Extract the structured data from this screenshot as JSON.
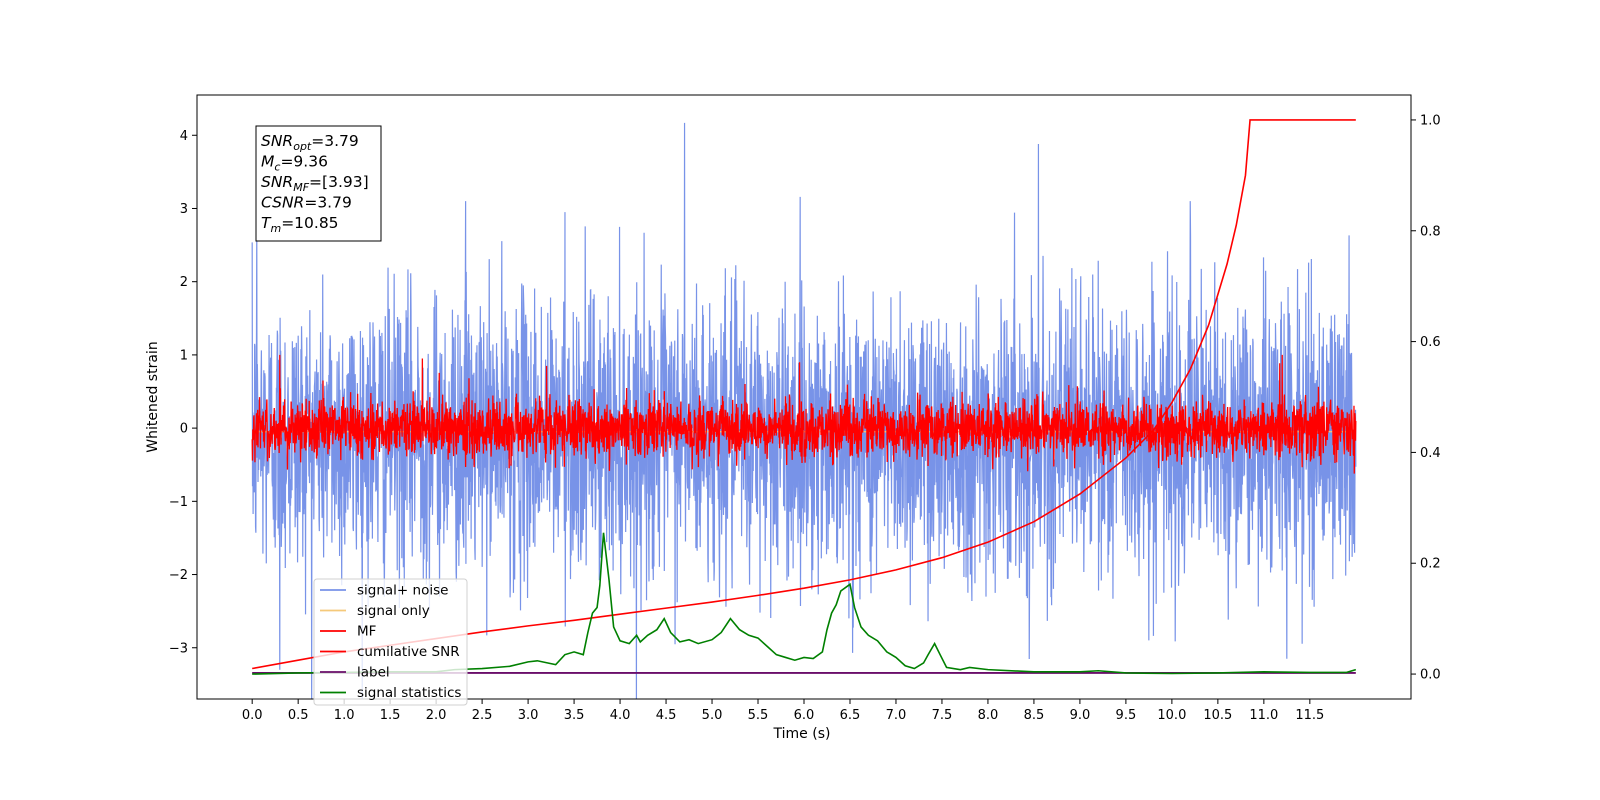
{
  "chart_data": {
    "type": "line",
    "xlabel": "Time (s)",
    "ylabel": "Whitened strain",
    "xlim": [
      -0.6,
      12.6
    ],
    "ylim": [
      -3.7,
      4.55
    ],
    "y2lim": [
      -0.045,
      1.045
    ],
    "xticks": [
      0.0,
      0.5,
      1.0,
      1.5,
      2.0,
      2.5,
      3.0,
      3.5,
      4.0,
      4.5,
      5.0,
      5.5,
      6.0,
      6.5,
      7.0,
      7.5,
      8.0,
      8.5,
      9.0,
      9.5,
      10.0,
      10.5,
      11.0,
      11.5
    ],
    "xtick_labels": [
      "0.0",
      "0.5",
      "1.0",
      "1.5",
      "2.0",
      "2.5",
      "3.0",
      "3.5",
      "4.0",
      "4.5",
      "5.0",
      "5.5",
      "6.0",
      "6.5",
      "7.0",
      "7.5",
      "8.0",
      "8.5",
      "9.0",
      "9.5",
      "10.0",
      "10.5",
      "11.0",
      "11.5"
    ],
    "yticks": [
      -3,
      -2,
      -1,
      0,
      1,
      2,
      3,
      4
    ],
    "ytick_labels": [
      "−3",
      "−2",
      "−1",
      "0",
      "1",
      "2",
      "3",
      "4"
    ],
    "y2ticks": [
      0.0,
      0.2,
      0.4,
      0.6,
      0.8,
      1.0
    ],
    "y2tick_labels": [
      "0.0",
      "0.2",
      "0.4",
      "0.6",
      "0.8",
      "1.0"
    ],
    "grid": false,
    "legend_position": "lower-left",
    "annotation": [
      {
        "name": "SNR",
        "sub": "opt",
        "value": "=3.79"
      },
      {
        "name": "M",
        "sub": "c",
        "value": "=9.36"
      },
      {
        "name": "SNR",
        "sub": "MF",
        "value": "=[3.93]"
      },
      {
        "name": "CSNR",
        "sub": "",
        "value": "=3.79"
      },
      {
        "name": "T",
        "sub": "m",
        "value": "=10.85"
      }
    ],
    "series": [
      {
        "name": "signal+ noise",
        "color": "#7893e8",
        "axis": "left",
        "x_range": [
          0.0,
          12.0
        ],
        "noise_center": -0.1,
        "noise_sigma": 0.95,
        "spikes": [
          [
            4.7,
            4.17
          ],
          [
            8.55,
            3.88
          ],
          [
            0.05,
            2.8
          ],
          [
            2.32,
            3.1
          ],
          [
            0.3,
            -3.3
          ],
          [
            9.75,
            -2.9
          ],
          [
            11.25,
            -3.15
          ],
          [
            3.4,
            2.95
          ],
          [
            10.2,
            3.1
          ]
        ]
      },
      {
        "name": "signal only",
        "color": "#f5c97a",
        "axis": "left",
        "x_range": [
          0.0,
          12.0
        ],
        "constant": -0.05
      },
      {
        "name": "MF",
        "color": "#ff0000",
        "axis": "left",
        "x_range": [
          0.0,
          12.0
        ],
        "noise_center": 0.0,
        "noise_sigma": 0.2,
        "spikes": [
          [
            0.3,
            1.0
          ],
          [
            1.85,
            0.95
          ],
          [
            3.2,
            0.85
          ],
          [
            11.2,
            1.0
          ],
          [
            5.95,
            0.9
          ]
        ]
      },
      {
        "name": "cumilative SNR",
        "color": "#ff0000",
        "axis": "right",
        "x": [
          0.0,
          0.5,
          1.0,
          1.5,
          2.0,
          2.5,
          3.0,
          3.5,
          4.0,
          4.5,
          5.0,
          5.5,
          6.0,
          6.5,
          7.0,
          7.5,
          8.0,
          8.5,
          9.0,
          9.5,
          9.8,
          10.0,
          10.2,
          10.4,
          10.6,
          10.7,
          10.8,
          10.85,
          11.0,
          11.5,
          12.0
        ],
        "values": [
          0.01,
          0.025,
          0.04,
          0.052,
          0.064,
          0.076,
          0.087,
          0.097,
          0.108,
          0.119,
          0.13,
          0.142,
          0.155,
          0.17,
          0.188,
          0.21,
          0.238,
          0.275,
          0.325,
          0.39,
          0.44,
          0.49,
          0.55,
          0.63,
          0.74,
          0.81,
          0.9,
          1.0,
          1.0,
          1.0,
          1.0
        ]
      },
      {
        "name": "label",
        "color": "#6a0d6a",
        "axis": "right",
        "x": [
          0.0,
          12.0
        ],
        "values": [
          0.002,
          0.002
        ]
      },
      {
        "name": "signal statistics",
        "color": "#008000",
        "axis": "right",
        "x": [
          0.0,
          0.5,
          1.0,
          1.5,
          2.0,
          2.2,
          2.5,
          2.8,
          3.0,
          3.1,
          3.3,
          3.4,
          3.5,
          3.6,
          3.65,
          3.7,
          3.75,
          3.78,
          3.82,
          3.88,
          3.93,
          4.0,
          4.1,
          4.18,
          4.22,
          4.3,
          4.4,
          4.48,
          4.55,
          4.65,
          4.75,
          4.85,
          5.0,
          5.1,
          5.2,
          5.3,
          5.4,
          5.5,
          5.6,
          5.7,
          5.8,
          5.9,
          6.0,
          6.1,
          6.2,
          6.25,
          6.3,
          6.35,
          6.4,
          6.5,
          6.55,
          6.62,
          6.7,
          6.8,
          6.9,
          7.0,
          7.1,
          7.2,
          7.3,
          7.35,
          7.42,
          7.48,
          7.55,
          7.7,
          7.8,
          8.0,
          8.5,
          9.0,
          9.2,
          9.5,
          10.0,
          10.5,
          11.0,
          11.5,
          11.9,
          12.0
        ],
        "values": [
          0.0,
          0.002,
          0.003,
          0.004,
          0.004,
          0.008,
          0.01,
          0.014,
          0.022,
          0.024,
          0.017,
          0.035,
          0.04,
          0.035,
          0.075,
          0.11,
          0.12,
          0.16,
          0.255,
          0.17,
          0.085,
          0.06,
          0.055,
          0.07,
          0.058,
          0.07,
          0.08,
          0.1,
          0.075,
          0.058,
          0.062,
          0.055,
          0.062,
          0.075,
          0.1,
          0.08,
          0.07,
          0.065,
          0.05,
          0.035,
          0.03,
          0.025,
          0.03,
          0.028,
          0.04,
          0.08,
          0.11,
          0.125,
          0.15,
          0.162,
          0.12,
          0.085,
          0.07,
          0.06,
          0.04,
          0.03,
          0.015,
          0.01,
          0.02,
          0.035,
          0.055,
          0.035,
          0.012,
          0.008,
          0.012,
          0.008,
          0.004,
          0.004,
          0.006,
          0.002,
          0.001,
          0.002,
          0.004,
          0.003,
          0.003,
          0.008
        ]
      }
    ]
  }
}
